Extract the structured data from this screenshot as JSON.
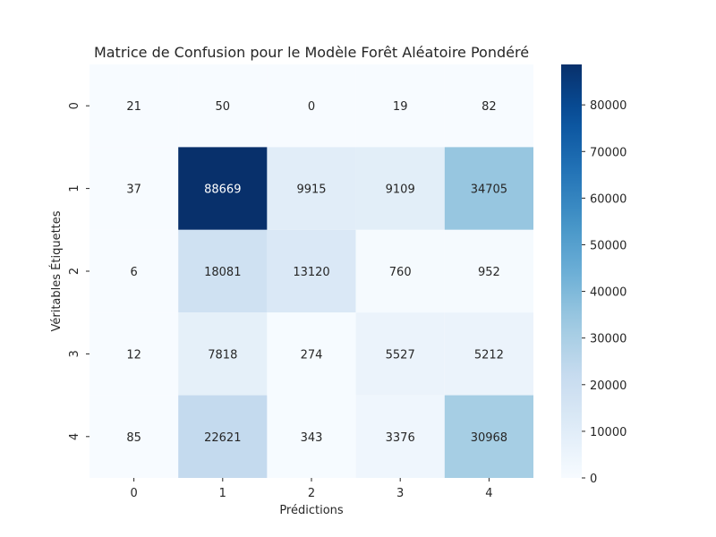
{
  "chart_data": {
    "type": "heatmap",
    "title": "Matrice de Confusion pour le Modèle Forêt Aléatoire Pondéré",
    "xlabel": "Prédictions",
    "ylabel": "Véritables Étiquettes",
    "x_categories": [
      "0",
      "1",
      "2",
      "3",
      "4"
    ],
    "y_categories": [
      "0",
      "1",
      "2",
      "3",
      "4"
    ],
    "values": [
      [
        21,
        50,
        0,
        19,
        82
      ],
      [
        37,
        88669,
        9915,
        9109,
        34705
      ],
      [
        6,
        18081,
        13120,
        760,
        952
      ],
      [
        12,
        7818,
        274,
        5527,
        5212
      ],
      [
        85,
        22621,
        343,
        3376,
        30968
      ]
    ],
    "colormap": "Blues",
    "color_range": [
      0,
      88669
    ],
    "colorbar_ticks": [
      "0",
      "10000",
      "20000",
      "30000",
      "40000",
      "50000",
      "60000",
      "70000",
      "80000"
    ],
    "annotations": true
  }
}
